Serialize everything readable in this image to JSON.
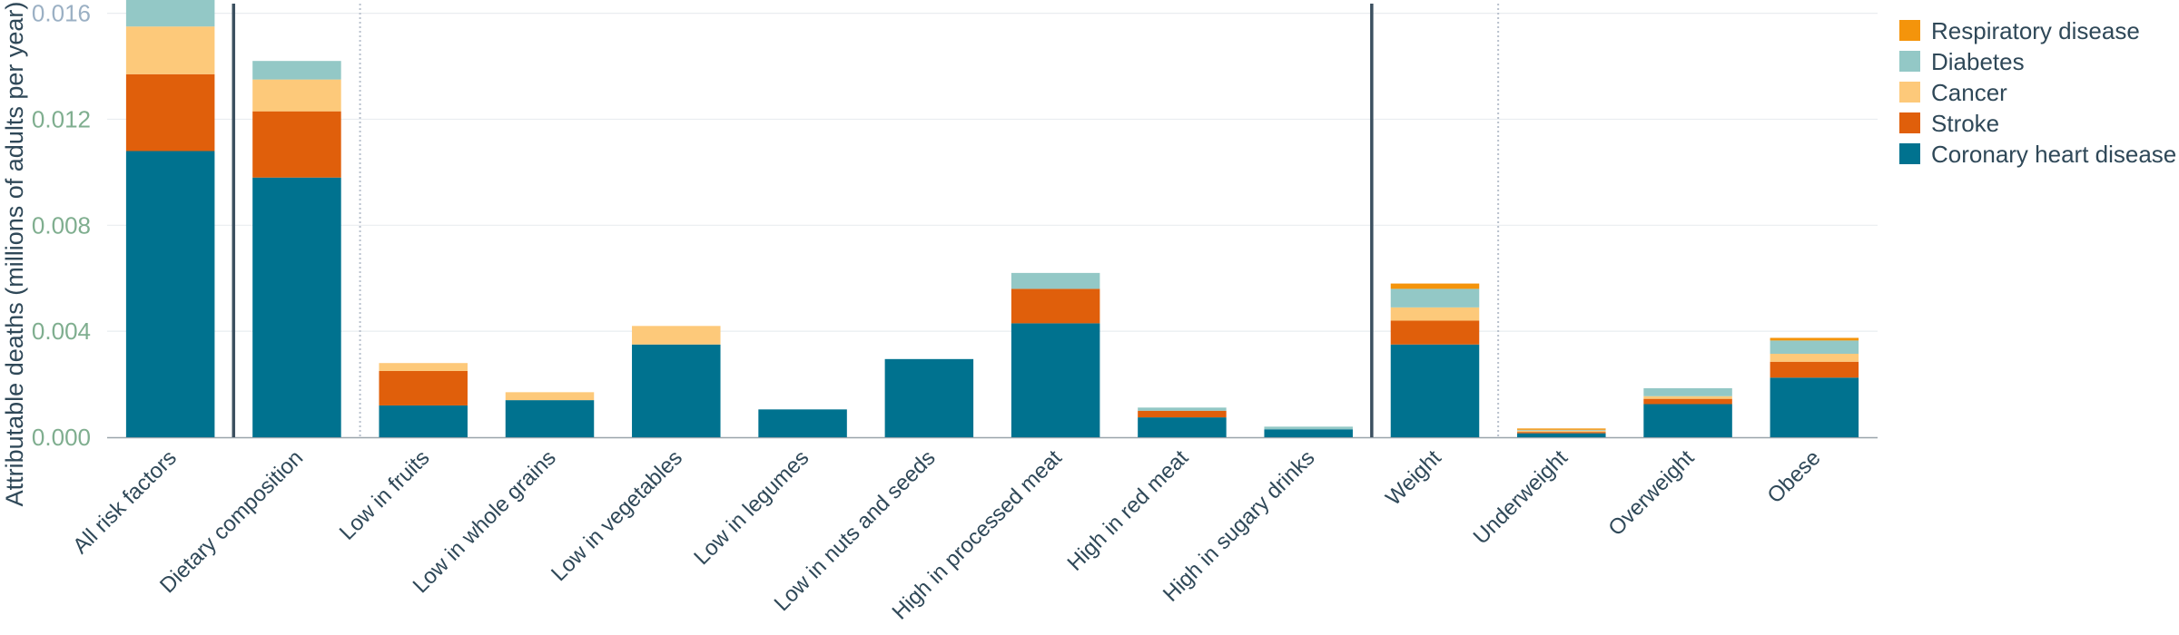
{
  "chart_data": {
    "type": "bar",
    "stacked": true,
    "title": "",
    "xlabel": "",
    "ylabel": "Attributable deaths (millions of adults per year)",
    "ylim": [
      0,
      0.0165
    ],
    "yticks": [
      "0.000",
      "0.004",
      "0.008",
      "0.012",
      "0.016"
    ],
    "ytick_values": [
      0,
      0.004,
      0.008,
      0.012,
      0.016
    ],
    "grid": true,
    "legend_position": "top-right",
    "categories": [
      "All risk factors",
      "Dietary composition",
      "Low in fruits",
      "Low in whole grains",
      "Low in vegetables",
      "Low in legumes",
      "Low in nuts and seeds",
      "High in processed meat",
      "High in red meat",
      "High in sugary drinks",
      "Weight",
      "Underweight",
      "Overweight",
      "Obese"
    ],
    "separators": [
      {
        "after_index": 0,
        "style": "solid"
      },
      {
        "after_index": 1,
        "style": "dotted"
      },
      {
        "after_index": 9,
        "style": "solid"
      },
      {
        "after_index": 10,
        "style": "dotted"
      }
    ],
    "series": [
      {
        "name": "Coronary heart disease",
        "color": "#00728f",
        "values": [
          0.0108,
          0.0098,
          0.0012,
          0.0014,
          0.0035,
          0.00105,
          0.00295,
          0.0043,
          0.00075,
          0.0003,
          0.0035,
          0.00015,
          0.00125,
          0.00225
        ]
      },
      {
        "name": "Stroke",
        "color": "#e05f0b",
        "values": [
          0.0029,
          0.0025,
          0.0013,
          0.0,
          0.0,
          0.0,
          0.0,
          0.0013,
          0.00025,
          0.0,
          0.0009,
          5e-05,
          0.0002,
          0.0006
        ]
      },
      {
        "name": "Cancer",
        "color": "#fdc97a",
        "values": [
          0.0018,
          0.0012,
          0.0003,
          0.0003,
          0.0007,
          0.0,
          0.0,
          0.0,
          0.0,
          0.0,
          0.0005,
          5e-05,
          0.0001,
          0.0003
        ]
      },
      {
        "name": "Diabetes",
        "color": "#93c8c6",
        "values": [
          0.0011,
          0.0007,
          0.0,
          0.0,
          0.0,
          0.0,
          0.0,
          0.0006,
          0.00012,
          0.0001,
          0.0007,
          3e-05,
          0.0003,
          0.0005
        ]
      },
      {
        "name": "Respiratory disease",
        "color": "#f4940b",
        "values": [
          0.0002,
          0.0,
          0.0,
          0.0,
          0.0,
          0.0,
          0.0,
          0.0,
          0.0,
          0.0,
          0.0002,
          5e-05,
          0.0,
          0.0001
        ]
      }
    ],
    "legend_order": [
      "Respiratory disease",
      "Diabetes",
      "Cancer",
      "Stroke",
      "Coronary heart disease"
    ]
  },
  "colors": {
    "ytick_top": "#9bb0c4",
    "ytick_bottom": "#7fae8f",
    "grid": "#e9edf0",
    "axis": "#9aa4ab",
    "separator_solid": "#3c5060",
    "separator_dotted": "#b8c0cc"
  }
}
